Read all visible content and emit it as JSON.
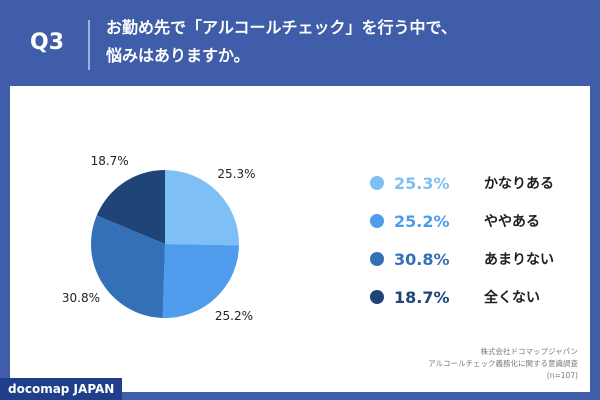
{
  "header": {
    "q_label": "Q3",
    "question_line1": "お勤め先で「アルコールチェック」を行う中で、",
    "question_line2": "悩みはありますか。"
  },
  "chart_data": {
    "type": "pie",
    "categories": [
      "かなりある",
      "ややある",
      "あまりない",
      "全くない"
    ],
    "values": [
      25.3,
      25.2,
      30.8,
      18.7
    ],
    "labels": [
      "25.3%",
      "25.2%",
      "30.8%",
      "18.7%"
    ],
    "colors": [
      "#7ebff5",
      "#4f9cec",
      "#3470b8",
      "#1f4477"
    ],
    "legend_position": "right"
  },
  "source": {
    "line1": "株式会社ドコマップジャパン",
    "line2": "アルコールチェック義務化に関する意識調査",
    "line3": "(n=107)"
  },
  "brand": "docomap JAPAN"
}
